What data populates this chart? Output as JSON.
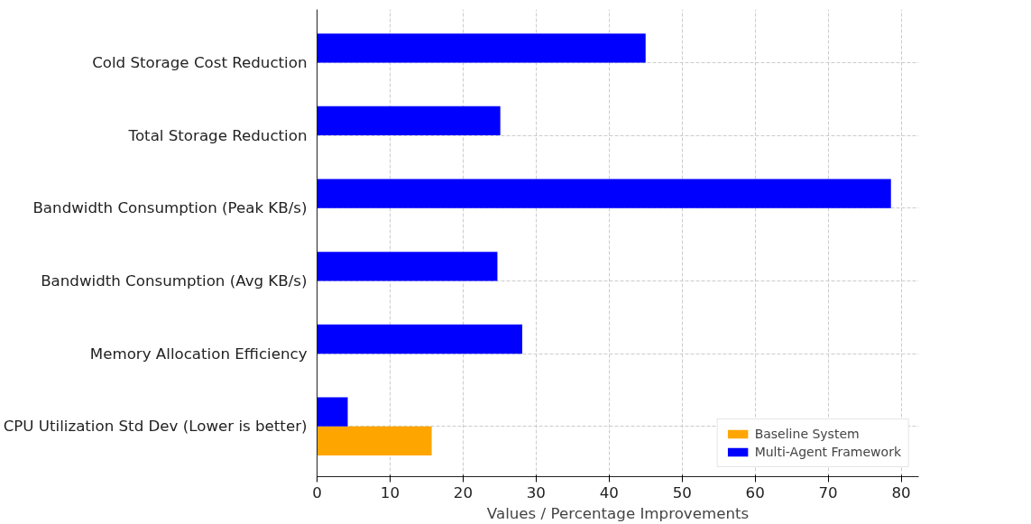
{
  "chart_data": {
    "type": "bar",
    "orientation": "horizontal",
    "xlabel": "Values / Percentage Improvements",
    "categories": [
      "Cold Storage Cost Reduction",
      "Total Storage Reduction",
      "Bandwidth Consumption (Peak KB/s)",
      "Bandwidth Consumption (Avg KB/s)",
      "Memory Allocation Efficiency",
      "CPU Utilization Std Dev (Lower is better)"
    ],
    "series": [
      {
        "name": "Baseline System",
        "color": "#ffa500",
        "values": [
          null,
          null,
          null,
          null,
          null,
          15.7
        ]
      },
      {
        "name": "Multi-Agent Framework",
        "color": "#0000ff",
        "values": [
          45,
          25.1,
          78.6,
          24.7,
          28.1,
          4.2
        ]
      }
    ],
    "xlim": [
      0,
      82.4
    ],
    "xticks": [
      0,
      10,
      20,
      30,
      40,
      50,
      60,
      70,
      80
    ],
    "grid": true,
    "legend": "bottom right"
  }
}
